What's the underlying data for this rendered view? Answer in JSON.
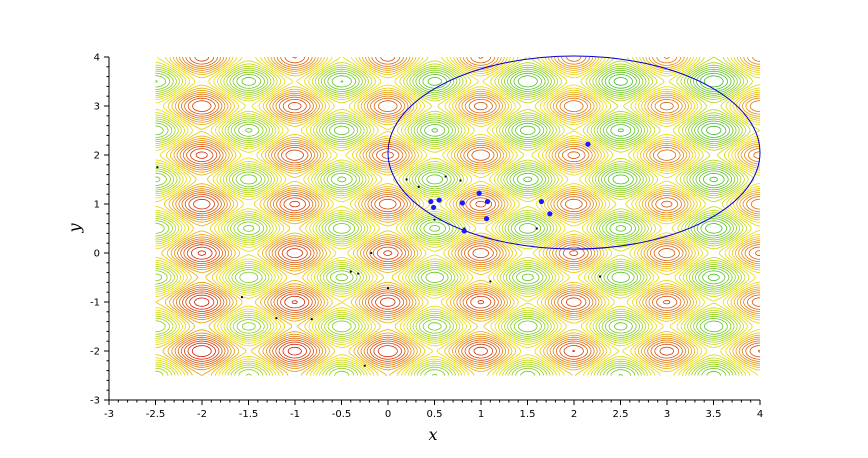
{
  "chart_data": {
    "type": "scatter",
    "title": "",
    "xlabel": "x",
    "ylabel": "y",
    "xlim": [
      -3,
      4
    ],
    "ylim": [
      -3,
      4
    ],
    "x_ticks": [
      "-3",
      "-2.5",
      "-2",
      "-1.5",
      "-1",
      "-0.5",
      "0",
      "0.5",
      "1",
      "1.5",
      "2",
      "2.5",
      "3",
      "3.5",
      "4"
    ],
    "y_ticks": [
      "-3",
      "-2",
      "-1",
      "0",
      "1",
      "2",
      "3",
      "4"
    ],
    "grid": false,
    "contour": {
      "x_range": [
        -2.5,
        4
      ],
      "y_range": [
        -2.5,
        4
      ],
      "colormap": "red-yellow-green",
      "color_low": "#cc0000",
      "color_mid": "#f0e000",
      "color_high": "#22bb22",
      "minima_x": [
        -2,
        -1,
        0,
        1,
        2,
        3
      ],
      "minima_y": [
        -2,
        -1,
        0,
        1,
        2,
        3
      ]
    },
    "series": [
      {
        "marker": "dot-small",
        "color": "#000000",
        "x": [
          -2.48,
          -1.57,
          -1.2,
          -0.82,
          -0.4,
          -0.32,
          -0.25,
          -0.18,
          0.0,
          0.2,
          0.33,
          0.5,
          0.62,
          0.78,
          0.82,
          1.1,
          1.6,
          2.28
        ],
        "y": [
          1.75,
          -0.9,
          -1.33,
          -1.35,
          -0.38,
          -0.42,
          -2.3,
          0.0,
          -0.72,
          1.5,
          1.35,
          0.68,
          1.56,
          1.48,
          0.5,
          -0.58,
          0.5,
          -0.48
        ]
      },
      {
        "marker": "dot-large",
        "color": "#1a1aff",
        "x": [
          0.46,
          0.49,
          0.55,
          0.8,
          0.82,
          0.98,
          1.06,
          1.07,
          1.65,
          1.74,
          2.15
        ],
        "y": [
          1.05,
          0.93,
          1.08,
          1.02,
          0.45,
          1.22,
          0.7,
          1.05,
          1.05,
          0.8,
          2.22
        ]
      }
    ],
    "ellipse": {
      "center": [
        2.0,
        2.05
      ],
      "semi_axis_x": 2.0,
      "semi_axis_y": 1.97,
      "color": "#0000cc"
    }
  }
}
